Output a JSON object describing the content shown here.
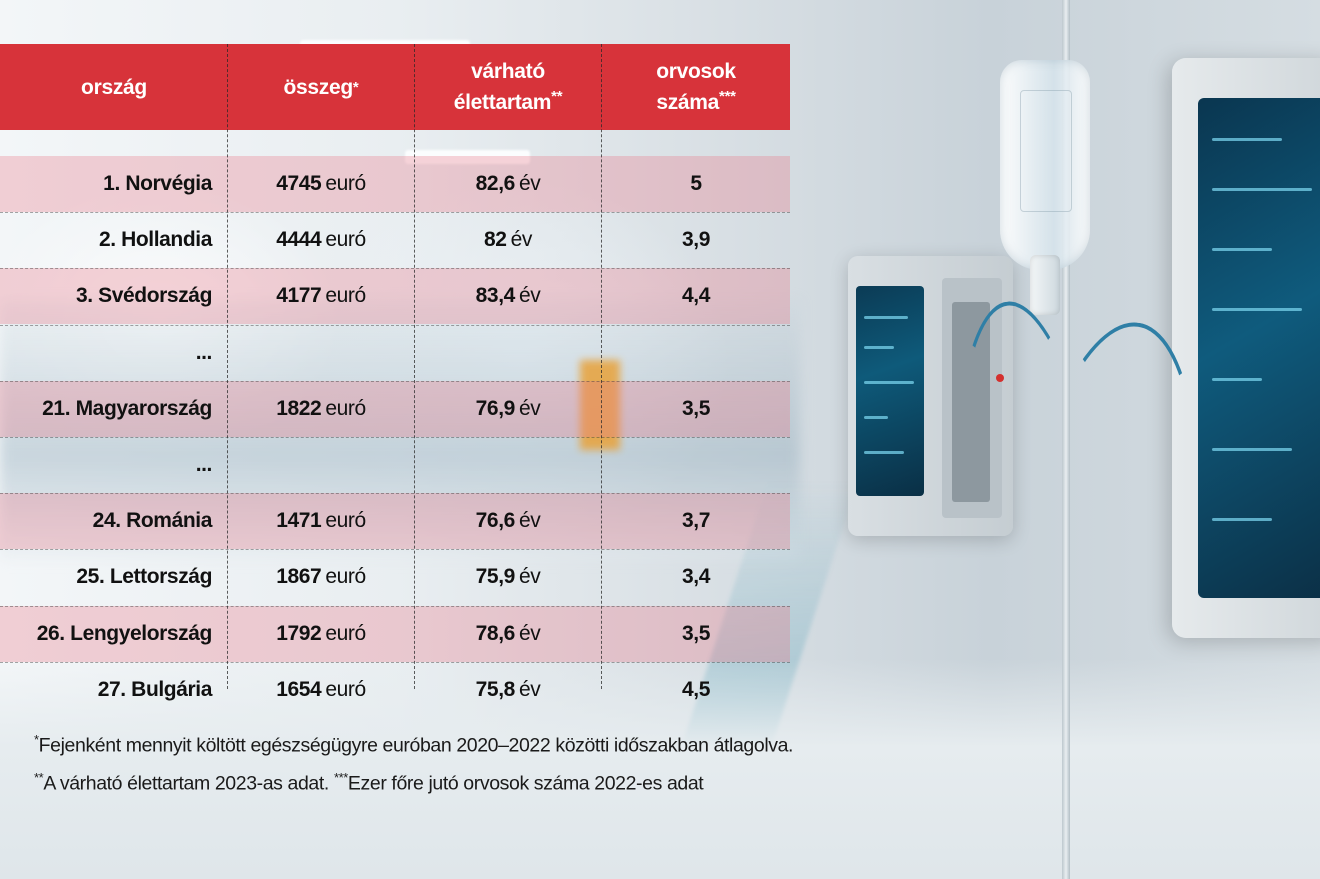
{
  "table": {
    "headers": [
      {
        "text": "ország",
        "suffix": ""
      },
      {
        "text": "összeg",
        "suffix": "*"
      },
      {
        "text": "várható élettartam",
        "suffix": "**"
      },
      {
        "text": "orvosok száma",
        "suffix": "***"
      }
    ],
    "rows": [
      {
        "country": "1. Norvégia",
        "amount": "4745",
        "amount_unit": "euró",
        "life": "82,6",
        "life_unit": "év",
        "doctors": "5",
        "shaded": true
      },
      {
        "country": "2. Hollandia",
        "amount": "4444",
        "amount_unit": "euró",
        "life": "82",
        "life_unit": "év",
        "doctors": "3,9",
        "shaded": false
      },
      {
        "country": "3. Svédország",
        "amount": "4177",
        "amount_unit": "euró",
        "life": "83,4",
        "life_unit": "év",
        "doctors": "4,4",
        "shaded": true
      },
      {
        "country": "...",
        "amount": "",
        "amount_unit": "",
        "life": "",
        "life_unit": "",
        "doctors": "",
        "shaded": false
      },
      {
        "country": "21. Magyarország",
        "amount": "1822",
        "amount_unit": "euró",
        "life": "76,9",
        "life_unit": "év",
        "doctors": "3,5",
        "shaded": true
      },
      {
        "country": "...",
        "amount": "",
        "amount_unit": "",
        "life": "",
        "life_unit": "",
        "doctors": "",
        "shaded": false
      },
      {
        "country": "24. Románia",
        "amount": "1471",
        "amount_unit": "euró",
        "life": "76,6",
        "life_unit": "év",
        "doctors": "3,7",
        "shaded": true
      },
      {
        "country": "25. Lettország",
        "amount": "1867",
        "amount_unit": "euró",
        "life": "75,9",
        "life_unit": "év",
        "doctors": "3,4",
        "shaded": false
      },
      {
        "country": "26. Lengyelország",
        "amount": "1792",
        "amount_unit": "euró",
        "life": "78,6",
        "life_unit": "év",
        "doctors": "3,5",
        "shaded": true
      },
      {
        "country": "27. Bulgária",
        "amount": "1654",
        "amount_unit": "euró",
        "life": "75,8",
        "life_unit": "év",
        "doctors": "4,5",
        "shaded": false
      }
    ]
  },
  "footnotes": {
    "line1_mark": "*",
    "line1": "Fejenként mennyit költött egészségügyre euróban 2020–2022 közötti időszakban átlagolva.",
    "line2_mark": "**",
    "line2a": "A várható élettartam 2023-as adat. ",
    "line2_mark2": "***",
    "line2b": "Ezer főre jutó orvosok száma 2022-es adat"
  },
  "colors": {
    "header_bg": "#d7333a",
    "row_shade": "#e97888",
    "text": "#111111"
  }
}
